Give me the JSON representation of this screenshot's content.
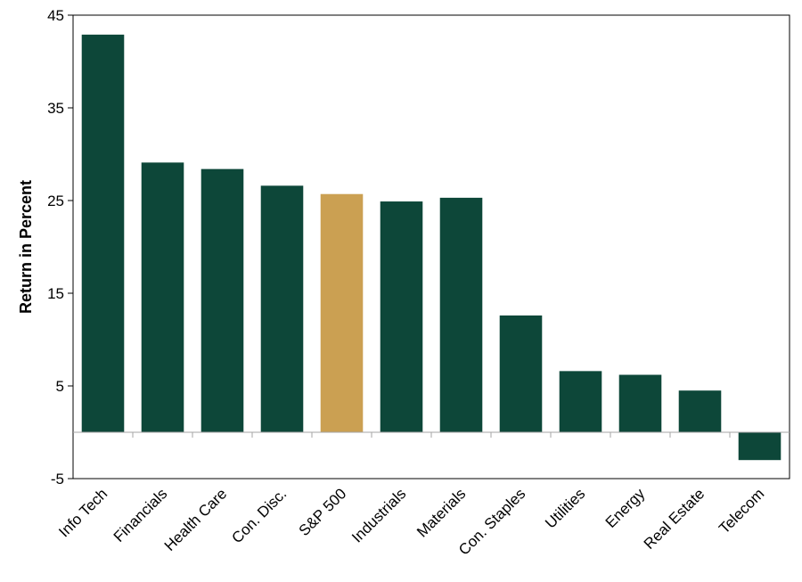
{
  "chart_data": {
    "type": "bar",
    "title": "",
    "xlabel": "",
    "ylabel": "Return in Percent",
    "ylim": [
      -5,
      45
    ],
    "yticks": [
      -5,
      5,
      15,
      25,
      35,
      45
    ],
    "grid": false,
    "legend": "none",
    "categories": [
      "Info Tech",
      "Financials",
      "Health Care",
      "Con. Disc.",
      "S&P 500",
      "Industrials",
      "Materials",
      "Con. Staples",
      "Utilities",
      "Energy",
      "Real Estate",
      "Telecom"
    ],
    "values": [
      42.9,
      29.1,
      28.4,
      26.6,
      25.7,
      24.9,
      25.3,
      12.6,
      6.6,
      6.2,
      4.5,
      -3.0
    ],
    "highlight_category": "S&P 500",
    "colors": {
      "bar": "#0d4739",
      "highlight": "#cba052",
      "axis": "#a6a6a6",
      "frame": "#000000"
    }
  }
}
